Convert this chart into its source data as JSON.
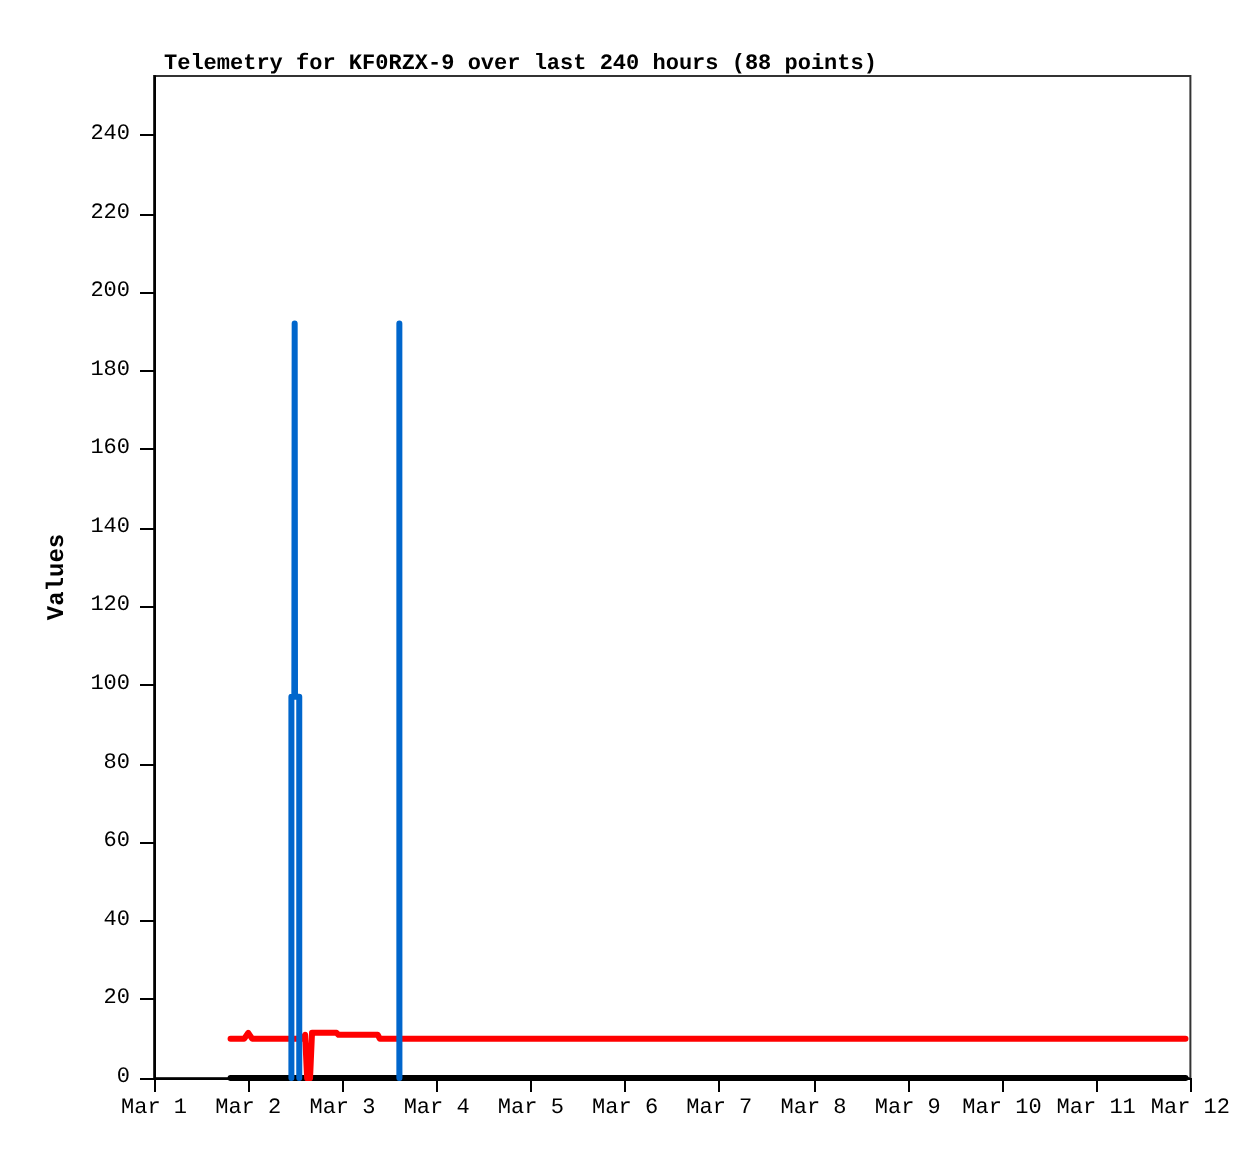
{
  "chart_data": {
    "type": "line",
    "title": "Telemetry for KF0RZX-9 over last 240 hours (88 points)",
    "ylabel": "Values",
    "xlim": [
      "--03-01",
      "--03-12"
    ],
    "xticks": [
      {
        "value": "--03-01",
        "label": "Mar 1"
      },
      {
        "value": "--03-02",
        "label": "Mar 2"
      },
      {
        "value": "--03-03",
        "label": "Mar 3"
      },
      {
        "value": "--03-04",
        "label": "Mar 4"
      },
      {
        "value": "--03-05",
        "label": "Mar 5"
      },
      {
        "value": "--03-06",
        "label": "Mar 6"
      },
      {
        "value": "--03-07",
        "label": "Mar 7"
      },
      {
        "value": "--03-08",
        "label": "Mar 8"
      },
      {
        "value": "--03-09",
        "label": "Mar 9"
      },
      {
        "value": "--03-10",
        "label": "Mar 10"
      },
      {
        "value": "--03-11",
        "label": "Mar 11"
      },
      {
        "value": "--03-12",
        "label": "Mar 12"
      }
    ],
    "ylim": [
      0,
      255
    ],
    "yticks": [
      0,
      20,
      40,
      60,
      80,
      100,
      120,
      140,
      160,
      180,
      200,
      220,
      240
    ],
    "grid": false,
    "marker": "none",
    "line_style": "solid",
    "series": [
      {
        "color": "#000000",
        "x": [
          "--03-01T19:30",
          "--03-11T22:45"
        ],
        "values": [
          0,
          0
        ]
      },
      {
        "color": "#ff0000",
        "x": [
          "--03-01T19:30",
          "--03-01T23:00",
          "--03-02T00:00",
          "--03-02T01:00",
          "--03-02T14:00",
          "--03-02T14:30",
          "--03-02T15:00",
          "--03-02T15:45",
          "--03-02T16:15",
          "--03-02T22:30",
          "--03-02T23:00",
          "--03-03T09:00",
          "--03-03T09:30",
          "--03-11T22:45"
        ],
        "values": [
          10,
          10,
          11.5,
          10,
          10,
          11,
          0,
          0,
          11.5,
          11.5,
          11,
          11,
          10,
          10
        ]
      },
      {
        "color": "#0066cc",
        "x": [
          "--03-02T11:00",
          "--03-02T11:00",
          "--03-02T11:45",
          "--03-02T11:50",
          "--03-02T11:55",
          "--03-02T13:00",
          "--03-02T13:00"
        ],
        "values": [
          0,
          97,
          97,
          192,
          97,
          97,
          0
        ]
      },
      {
        "color": "#0066cc",
        "x": [
          "--03-03T14:30",
          "--03-03T14:30",
          "--03-03T14:31"
        ],
        "values": [
          0,
          192,
          0
        ]
      }
    ]
  }
}
